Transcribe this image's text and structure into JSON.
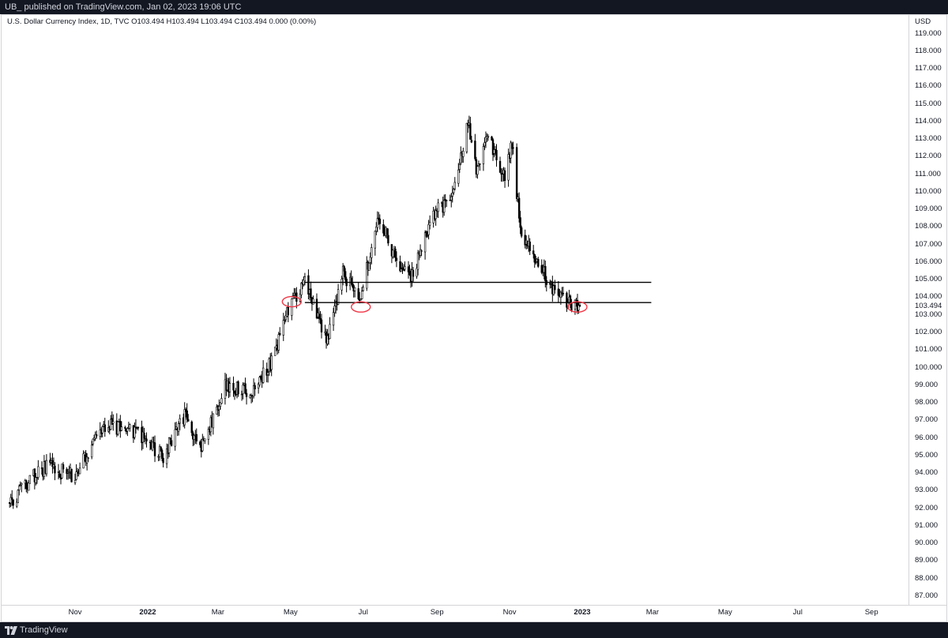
{
  "header": {
    "text": "UB_ published on TradingView.com, Jan 02, 2023 19:06 UTC"
  },
  "legend": {
    "text": "U.S. Dollar Currency Index, 1D, TVC  O103.494  H103.494  L103.494  C103.494  0.000 (0.00%)"
  },
  "footer": {
    "brand": "TradingView"
  },
  "chart_data": {
    "type": "candlestick",
    "title": "U.S. Dollar Currency Index, 1D, TVC",
    "ohlc_last": {
      "open": 103.494,
      "high": 103.494,
      "low": 103.494,
      "close": 103.494,
      "change": "0.000 (0.00%)"
    },
    "currency": "USD",
    "last_price_label": "103.494",
    "ylim": [
      86.7,
      120
    ],
    "y_ticks": [
      "119.000",
      "118.000",
      "117.000",
      "116.000",
      "115.000",
      "114.000",
      "113.000",
      "112.000",
      "111.000",
      "110.000",
      "109.000",
      "108.000",
      "107.000",
      "106.000",
      "105.000",
      "104.000",
      "103.000",
      "102.000",
      "101.000",
      "100.000",
      "99.000",
      "98.000",
      "97.000",
      "96.000",
      "95.000",
      "94.000",
      "93.000",
      "92.000",
      "91.000",
      "90.000",
      "89.000",
      "88.000",
      "87.000"
    ],
    "x_ticks": [
      "Nov",
      "2022",
      "Mar",
      "May",
      "Jul",
      "Sep",
      "Nov",
      "2023",
      "Mar",
      "May",
      "Jul",
      "Sep"
    ],
    "x_tick_dates": [
      "2021-11-01",
      "2022-01-01",
      "2022-03-01",
      "2022-05-01",
      "2022-07-01",
      "2022-09-01",
      "2022-11-01",
      "2023-01-01",
      "2023-03-01",
      "2023-05-01",
      "2023-07-01",
      "2023-09-01"
    ],
    "price_path": [
      [
        "2021-09-07",
        92.3
      ],
      [
        "2021-09-28",
        93.9
      ],
      [
        "2021-10-10",
        94.4
      ],
      [
        "2021-10-30",
        93.8
      ],
      [
        "2021-11-25",
        96.8
      ],
      [
        "2021-12-20",
        96.4
      ],
      [
        "2022-01-14",
        94.9
      ],
      [
        "2022-02-01",
        97.3
      ],
      [
        "2022-02-15",
        95.4
      ],
      [
        "2022-03-07",
        98.9
      ],
      [
        "2022-03-28",
        98.6
      ],
      [
        "2022-04-14",
        100.2
      ],
      [
        "2022-05-01",
        103.6
      ],
      [
        "2022-05-13",
        104.9
      ],
      [
        "2022-05-31",
        101.5
      ],
      [
        "2022-06-14",
        105.4
      ],
      [
        "2022-06-28",
        103.8
      ],
      [
        "2022-07-14",
        108.6
      ],
      [
        "2022-08-02",
        105.4
      ],
      [
        "2022-08-11",
        105.2
      ],
      [
        "2022-08-29",
        108.8
      ],
      [
        "2022-09-14",
        109.6
      ],
      [
        "2022-09-27",
        114.1
      ],
      [
        "2022-10-05",
        111.0
      ],
      [
        "2022-10-13",
        113.3
      ],
      [
        "2022-10-28",
        110.8
      ],
      [
        "2022-11-03",
        112.9
      ],
      [
        "2022-11-10",
        107.8
      ],
      [
        "2022-11-24",
        105.9
      ],
      [
        "2022-12-05",
        104.8
      ],
      [
        "2022-12-15",
        103.9
      ],
      [
        "2022-12-30",
        103.494
      ]
    ],
    "horizontal_lines": [
      {
        "price": 104.85,
        "from": "2022-05-13",
        "to": "2023-02-28"
      },
      {
        "price": 103.7,
        "from": "2022-05-13",
        "to": "2023-02-28"
      }
    ],
    "ellipse_annotations": [
      {
        "date": "2022-05-02",
        "price": 103.75,
        "color": "#f23645"
      },
      {
        "date": "2022-06-29",
        "price": 103.45,
        "color": "#f23645"
      },
      {
        "date": "2022-12-28",
        "price": 103.45,
        "color": "#f23645"
      }
    ],
    "candle_color_up": "#ffffff",
    "candle_color_down": "#000000",
    "grid": false
  }
}
